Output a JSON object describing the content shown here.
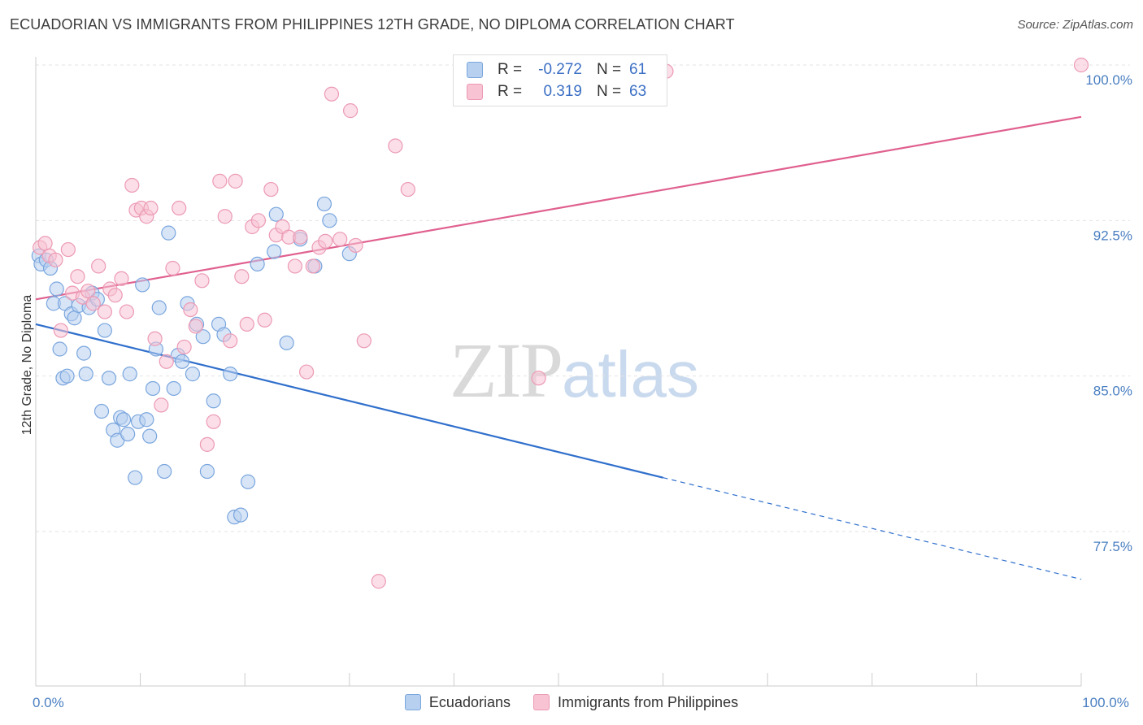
{
  "title": "ECUADORIAN VS IMMIGRANTS FROM PHILIPPINES 12TH GRADE, NO DIPLOMA CORRELATION CHART",
  "source": "Source: ZipAtlas.com",
  "watermark": {
    "zip": "ZIP",
    "atlas": "atlas"
  },
  "legend_top": {
    "rows": [
      {
        "r_label": "R =",
        "r_value": "-0.272",
        "n_label": "N =",
        "n_value": "61"
      },
      {
        "r_label": "R =",
        "r_value": "0.319",
        "n_label": "N =",
        "n_value": "63"
      }
    ]
  },
  "colors": {
    "blue_fill": "#b8d0f0",
    "blue_stroke": "#7aa6de",
    "blue_line": "#2f6fcc",
    "pink_fill": "#f8c3d3",
    "pink_stroke": "#ec9ab4",
    "pink_line": "#e0608f",
    "grid": "#e3e3e3"
  },
  "chart_data": {
    "type": "scatter",
    "xlabel": "",
    "ylabel": "12th Grade, No Diploma",
    "xlim": [
      0,
      100
    ],
    "ylim": [
      70.0,
      101.5
    ],
    "y_ticks": [
      {
        "value": 100.0,
        "label": "100.0%"
      },
      {
        "value": 92.5,
        "label": "92.5%"
      },
      {
        "value": 85.0,
        "label": "85.0%"
      },
      {
        "value": 77.5,
        "label": "77.5%"
      }
    ],
    "x_tick_labels": [
      {
        "value": 0,
        "label": "0.0%"
      },
      {
        "value": 100,
        "label": "100.0%"
      }
    ],
    "x_minor_ticks": [
      0,
      10,
      20,
      30,
      40,
      50,
      60,
      70,
      80,
      90,
      100
    ],
    "grid": true,
    "legend": "bottom",
    "series": [
      {
        "name": "Ecuadorians",
        "color": "#b8d0f0",
        "trend": {
          "x": [
            0,
            60
          ],
          "y": [
            87.5,
            80.1
          ],
          "dashed_to": [
            100,
            75.2
          ]
        },
        "points": [
          [
            0.3,
            90.8
          ],
          [
            0.5,
            90.4
          ],
          [
            1.0,
            90.6
          ],
          [
            1.4,
            90.2
          ],
          [
            1.7,
            88.5
          ],
          [
            2.0,
            89.2
          ],
          [
            2.3,
            86.3
          ],
          [
            2.6,
            84.9
          ],
          [
            2.8,
            88.5
          ],
          [
            3.0,
            85.0
          ],
          [
            3.4,
            88.0
          ],
          [
            3.7,
            87.8
          ],
          [
            4.1,
            88.4
          ],
          [
            4.6,
            86.1
          ],
          [
            4.8,
            85.1
          ],
          [
            5.1,
            88.3
          ],
          [
            5.4,
            89.0
          ],
          [
            5.9,
            88.7
          ],
          [
            6.3,
            83.3
          ],
          [
            6.6,
            87.2
          ],
          [
            7.0,
            84.9
          ],
          [
            7.4,
            82.4
          ],
          [
            7.8,
            81.9
          ],
          [
            8.1,
            83.0
          ],
          [
            8.4,
            82.9
          ],
          [
            8.8,
            82.2
          ],
          [
            9.0,
            85.1
          ],
          [
            9.5,
            80.1
          ],
          [
            9.8,
            82.8
          ],
          [
            10.2,
            89.4
          ],
          [
            10.6,
            82.9
          ],
          [
            10.9,
            82.1
          ],
          [
            11.2,
            84.4
          ],
          [
            11.5,
            86.3
          ],
          [
            11.8,
            88.3
          ],
          [
            12.3,
            80.4
          ],
          [
            12.7,
            91.9
          ],
          [
            13.2,
            84.4
          ],
          [
            13.6,
            86.0
          ],
          [
            14.0,
            85.7
          ],
          [
            14.5,
            88.5
          ],
          [
            15.0,
            85.1
          ],
          [
            15.4,
            87.5
          ],
          [
            16.0,
            86.9
          ],
          [
            16.4,
            80.4
          ],
          [
            17.0,
            83.8
          ],
          [
            17.5,
            87.5
          ],
          [
            18.0,
            87.0
          ],
          [
            18.6,
            85.1
          ],
          [
            19.0,
            78.2
          ],
          [
            19.6,
            78.3
          ],
          [
            20.3,
            79.9
          ],
          [
            21.2,
            90.4
          ],
          [
            22.8,
            91.0
          ],
          [
            24.0,
            86.6
          ],
          [
            25.3,
            91.6
          ],
          [
            26.7,
            90.3
          ],
          [
            27.6,
            93.3
          ],
          [
            28.1,
            92.5
          ],
          [
            30.0,
            90.9
          ],
          [
            23.0,
            92.8
          ]
        ]
      },
      {
        "name": "Immigrants from Philippines",
        "color": "#f8c3d3",
        "trend": {
          "x": [
            0,
            100
          ],
          "y": [
            88.7,
            97.5
          ]
        },
        "points": [
          [
            0.4,
            91.2
          ],
          [
            0.9,
            91.4
          ],
          [
            1.3,
            90.8
          ],
          [
            1.9,
            90.6
          ],
          [
            2.4,
            87.2
          ],
          [
            3.1,
            91.1
          ],
          [
            3.5,
            89.0
          ],
          [
            4.0,
            89.8
          ],
          [
            4.5,
            88.8
          ],
          [
            5.0,
            89.1
          ],
          [
            5.5,
            88.5
          ],
          [
            6.0,
            90.3
          ],
          [
            6.6,
            88.1
          ],
          [
            7.1,
            89.2
          ],
          [
            7.6,
            88.9
          ],
          [
            8.2,
            89.7
          ],
          [
            8.7,
            88.1
          ],
          [
            9.2,
            94.2
          ],
          [
            9.6,
            93.0
          ],
          [
            10.1,
            93.1
          ],
          [
            10.6,
            92.7
          ],
          [
            11.0,
            93.1
          ],
          [
            11.4,
            86.8
          ],
          [
            12.0,
            83.6
          ],
          [
            12.5,
            85.7
          ],
          [
            13.1,
            90.2
          ],
          [
            13.7,
            93.1
          ],
          [
            14.2,
            86.4
          ],
          [
            14.8,
            88.2
          ],
          [
            15.3,
            87.4
          ],
          [
            15.9,
            89.6
          ],
          [
            16.4,
            81.7
          ],
          [
            17.0,
            82.8
          ],
          [
            17.6,
            94.4
          ],
          [
            18.1,
            92.7
          ],
          [
            18.6,
            86.7
          ],
          [
            19.1,
            94.4
          ],
          [
            19.7,
            89.8
          ],
          [
            20.2,
            87.5
          ],
          [
            20.7,
            92.2
          ],
          [
            21.3,
            92.5
          ],
          [
            21.9,
            87.7
          ],
          [
            22.5,
            94.0
          ],
          [
            23.0,
            91.8
          ],
          [
            23.6,
            92.2
          ],
          [
            24.2,
            91.7
          ],
          [
            24.8,
            90.3
          ],
          [
            25.3,
            91.7
          ],
          [
            25.9,
            85.2
          ],
          [
            26.5,
            90.3
          ],
          [
            27.1,
            91.2
          ],
          [
            27.7,
            91.5
          ],
          [
            28.3,
            98.6
          ],
          [
            29.1,
            91.6
          ],
          [
            30.1,
            97.8
          ],
          [
            30.6,
            91.3
          ],
          [
            31.4,
            86.7
          ],
          [
            32.8,
            75.1
          ],
          [
            34.4,
            96.1
          ],
          [
            35.6,
            94.0
          ],
          [
            48.1,
            84.9
          ],
          [
            60.3,
            99.7
          ],
          [
            100.0,
            100.0
          ]
        ]
      }
    ]
  }
}
